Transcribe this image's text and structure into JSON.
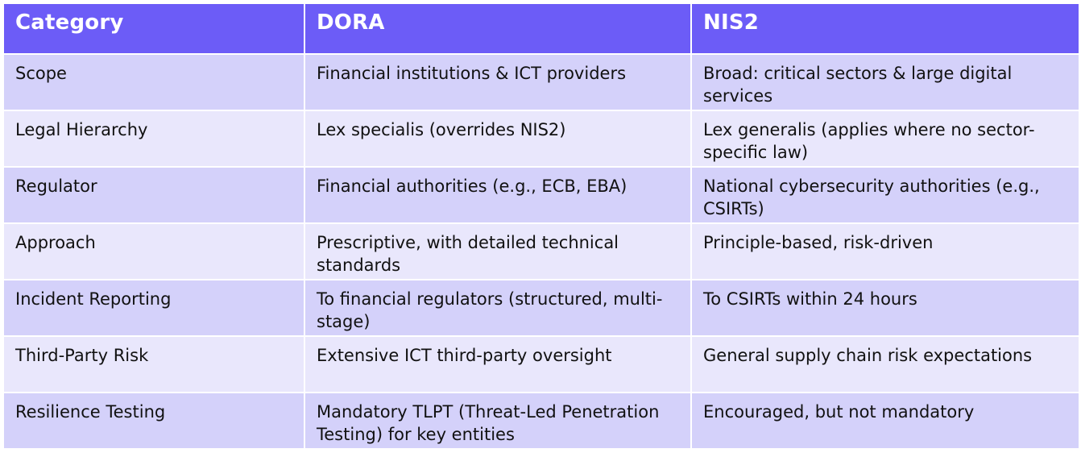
{
  "table": {
    "headers": [
      "Category",
      "DORA",
      "NIS2"
    ],
    "rows": [
      [
        "Scope",
        "Financial institutions & ICT providers",
        "Broad: critical sectors & large digital services"
      ],
      [
        "Legal Hierarchy",
        "Lex specialis (overrides NIS2)",
        "Lex generalis (applies where no sector-specific law)"
      ],
      [
        "Regulator",
        "Financial authorities (e.g., ECB, EBA)",
        "National cybersecurity authorities (e.g., CSIRTs)"
      ],
      [
        "Approach",
        "Prescriptive, with detailed technical standards",
        "Principle-based, risk-driven"
      ],
      [
        "Incident Reporting",
        "To financial regulators (structured, multi-stage)",
        "To CSIRTs within 24 hours"
      ],
      [
        "Third-Party Risk",
        "Extensive ICT third-party oversight",
        "General supply chain risk expectations"
      ],
      [
        "Resilience Testing",
        "Mandatory TLPT (Threat-Led Penetration Testing) for key entities",
        "Encouraged, but not mandatory"
      ]
    ]
  },
  "colors": {
    "header_bg": "#6c5cf7",
    "header_text": "#ffffff",
    "row_even_bg": "#d4d1fa",
    "row_odd_bg": "#e9e7fc",
    "cell_text": "#111111"
  }
}
